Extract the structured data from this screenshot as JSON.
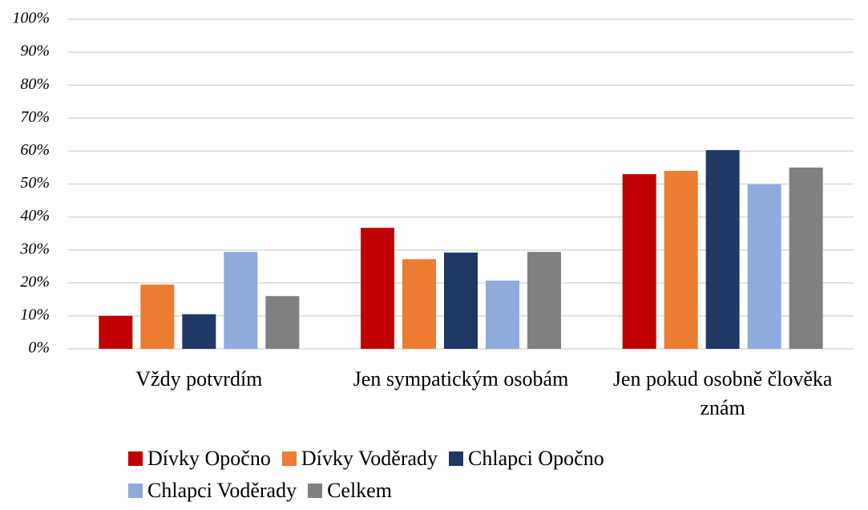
{
  "chart_data": {
    "type": "bar",
    "categories": [
      "Vždy potvrdím",
      "Jen sympatickým osobám",
      "Jen pokud osobně člověka znám"
    ],
    "series": [
      {
        "name": "Dívky Opočno",
        "color": "#c00000",
        "values": [
          10,
          36.7,
          53
        ]
      },
      {
        "name": "Dívky Voděrady",
        "color": "#ed7d31",
        "values": [
          19.5,
          27.2,
          54
        ]
      },
      {
        "name": "Chlapci Opočno",
        "color": "#203864",
        "values": [
          10.5,
          29.2,
          60.3
        ]
      },
      {
        "name": "Chlapci Voděrady",
        "color": "#8faadc",
        "values": [
          29.4,
          20.7,
          49.9
        ]
      },
      {
        "name": "Celkem",
        "color": "#808080",
        "values": [
          16,
          29.4,
          55
        ]
      }
    ],
    "ylim": [
      0,
      100
    ],
    "yticks": [
      {
        "value": 0,
        "label": "0%"
      },
      {
        "value": 10,
        "label": "10%"
      },
      {
        "value": 20,
        "label": "20%"
      },
      {
        "value": 30,
        "label": "30%"
      },
      {
        "value": 40,
        "label": "40%"
      },
      {
        "value": 50,
        "label": "50%"
      },
      {
        "value": 60,
        "label": "60%"
      },
      {
        "value": 70,
        "label": "70%"
      },
      {
        "value": 80,
        "label": "80%"
      },
      {
        "value": 90,
        "label": "90%"
      },
      {
        "value": 100,
        "label": "100%"
      }
    ],
    "grid": true,
    "legend": "bottom"
  }
}
